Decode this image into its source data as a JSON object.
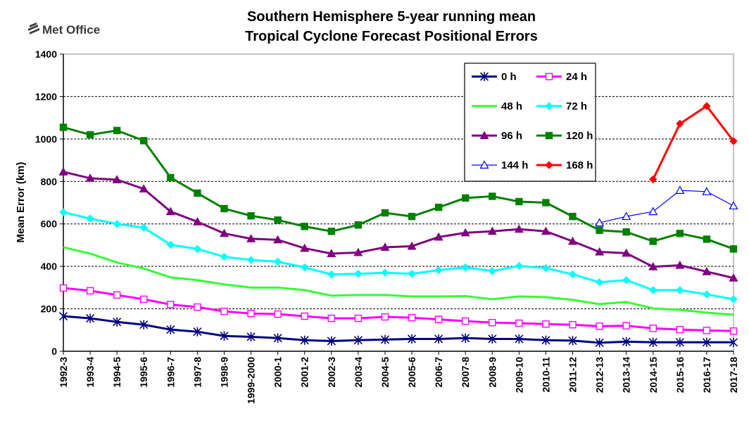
{
  "logo": {
    "text": "Met Office"
  },
  "chart_data": {
    "type": "line",
    "title": [
      "Southern Hemisphere 5-year running mean",
      "Tropical Cyclone Forecast Positional Errors"
    ],
    "xlabel": "",
    "ylabel": "Mean Error (km)",
    "ylim": [
      0,
      1400
    ],
    "yticks": [
      0,
      200,
      400,
      600,
      800,
      1000,
      1200,
      1400
    ],
    "grid": true,
    "legend_position": "top-right",
    "categories": [
      "1992-3",
      "1993-4",
      "1994-5",
      "1995-6",
      "1996-7",
      "1997-8",
      "1998-9",
      "1999-2000",
      "2000-1",
      "2001-2",
      "2002-3",
      "2003-4",
      "2004-5",
      "2005-6",
      "2006-7",
      "2007-8",
      "2008-9",
      "2009-10",
      "2010-11",
      "2011-12",
      "2012-13",
      "2013-14",
      "2014-15",
      "2015-16",
      "2016-17",
      "2017-18"
    ],
    "series": [
      {
        "name": "0 h",
        "color": "#000080",
        "marker": "star",
        "filled": true,
        "values": [
          165,
          155,
          138,
          125,
          102,
          92,
          72,
          68,
          62,
          52,
          48,
          52,
          55,
          58,
          58,
          62,
          58,
          58,
          52,
          50,
          40,
          45,
          42,
          42,
          42,
          42
        ]
      },
      {
        "name": "24 h",
        "color": "#ff00ff",
        "marker": "square",
        "filled": false,
        "values": [
          298,
          285,
          265,
          245,
          220,
          208,
          188,
          178,
          175,
          165,
          155,
          155,
          162,
          158,
          150,
          142,
          135,
          132,
          128,
          125,
          118,
          120,
          108,
          102,
          98,
          95
        ]
      },
      {
        "name": "48 h",
        "color": "#33ff33",
        "marker": "none",
        "filled": true,
        "values": [
          490,
          460,
          418,
          390,
          348,
          335,
          315,
          300,
          300,
          288,
          262,
          265,
          265,
          258,
          258,
          260,
          245,
          258,
          255,
          242,
          222,
          232,
          202,
          195,
          182,
          172
        ]
      },
      {
        "name": "72 h",
        "color": "#00ffff",
        "marker": "diamond",
        "filled": true,
        "values": [
          655,
          625,
          600,
          582,
          502,
          482,
          445,
          430,
          422,
          395,
          362,
          365,
          370,
          365,
          382,
          395,
          378,
          402,
          392,
          362,
          325,
          335,
          288,
          288,
          268,
          245
        ]
      },
      {
        "name": "96 h",
        "color": "#800080",
        "marker": "triangle",
        "filled": true,
        "values": [
          845,
          815,
          808,
          765,
          658,
          610,
          555,
          530,
          525,
          485,
          460,
          465,
          490,
          495,
          538,
          558,
          565,
          575,
          565,
          518,
          468,
          462,
          398,
          405,
          375,
          345
        ]
      },
      {
        "name": "120 h",
        "color": "#008000",
        "marker": "square",
        "filled": true,
        "values": [
          1055,
          1020,
          1040,
          992,
          818,
          745,
          672,
          638,
          618,
          588,
          565,
          595,
          652,
          635,
          678,
          722,
          730,
          705,
          700,
          635,
          570,
          562,
          518,
          555,
          528,
          482
        ]
      },
      {
        "name": "144 h",
        "color": "#0000ff",
        "marker": "triangle",
        "filled": false,
        "values": [
          null,
          null,
          null,
          null,
          null,
          null,
          null,
          null,
          null,
          null,
          null,
          null,
          null,
          null,
          null,
          null,
          null,
          null,
          null,
          null,
          605,
          635,
          658,
          758,
          752,
          685
        ]
      },
      {
        "name": "168 h",
        "color": "#ff0000",
        "marker": "diamond",
        "filled": true,
        "values": [
          null,
          null,
          null,
          null,
          null,
          null,
          null,
          null,
          null,
          null,
          null,
          null,
          null,
          null,
          null,
          null,
          null,
          null,
          null,
          null,
          null,
          null,
          810,
          1072,
          1155,
          990
        ]
      }
    ]
  }
}
